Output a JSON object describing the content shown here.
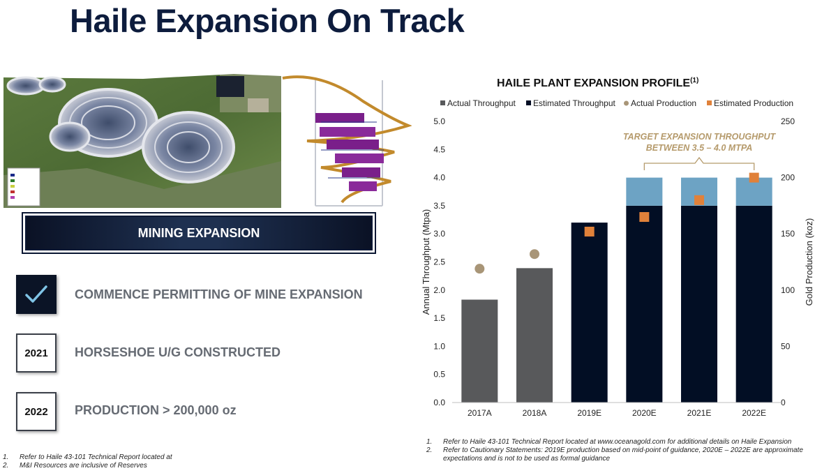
{
  "page": {
    "title": "Haile Expansion On Track"
  },
  "images": {
    "satellite": "haile-mine-satellite-image",
    "model": "horseshoe-underground-3d-model"
  },
  "banner": {
    "label": "MINING EXPANSION"
  },
  "milestones": [
    {
      "marker": "",
      "icon": "checkmark-icon",
      "text": "COMMENCE PERMITTING OF MINE EXPANSION"
    },
    {
      "marker": "2021",
      "text": "HORSESHOE U/G CONSTRUCTED"
    },
    {
      "marker": "2022",
      "text": "PRODUCTION > 200,000 oz"
    }
  ],
  "footnotes_left": [
    {
      "num": "1.",
      "text": "Refer to Haile 43-101 Technical Report located at"
    },
    {
      "num": "2.",
      "text": "M&I Resources are inclusive of Reserves"
    }
  ],
  "footnotes_right": [
    {
      "num": "1.",
      "text": "Refer to Haile 43-101 Technical Report located at www.oceanagold.com for additional details on Haile Expansion"
    },
    {
      "num": "2.",
      "text": "Refer to Cautionary Statements: 2019E production based on mid-point of guidance, 2020E – 2022E are approximate expectations and is not to be used as formal guidance"
    }
  ],
  "colors": {
    "title": "#0d1c3d",
    "actual_throughput": "#58595b",
    "estimated_throughput": "#020e24",
    "expansion_band": "#6da3c4",
    "actual_production": "#a89577",
    "estimated_production": "#e0813a",
    "annotation": "#b59a6b"
  },
  "chart_data": {
    "type": "bar",
    "title": "HAILE PLANT EXPANSION PROFILE",
    "title_superscript": "(1)",
    "categories": [
      "2017A",
      "2018A",
      "2019E",
      "2020E",
      "2021E",
      "2022E"
    ],
    "series": [
      {
        "name": "Actual Throughput",
        "type": "bar",
        "axis": "left",
        "values": [
          1.83,
          2.39,
          null,
          null,
          null,
          null
        ]
      },
      {
        "name": "Estimated Throughput",
        "type": "bar",
        "axis": "left",
        "values": [
          null,
          null,
          3.2,
          3.5,
          3.5,
          3.5
        ]
      },
      {
        "name": "",
        "type": "bar-range",
        "axis": "left",
        "values": [
          null,
          null,
          null,
          [
            3.5,
            4.0
          ],
          [
            3.5,
            4.0
          ],
          [
            3.5,
            4.0
          ]
        ]
      },
      {
        "name": "Actual Production",
        "type": "marker-circle",
        "axis": "right",
        "values": [
          119,
          132,
          null,
          null,
          null,
          null
        ]
      },
      {
        "name": "Estimated Production",
        "type": "marker-square",
        "axis": "right",
        "values": [
          null,
          null,
          152,
          165,
          180,
          200
        ]
      }
    ],
    "ylabel": "Annual Throughput (Mtpa)",
    "ylim": [
      0,
      5
    ],
    "yticks": [
      "0.0",
      "0.5",
      "1.0",
      "1.5",
      "2.0",
      "2.5",
      "3.0",
      "3.5",
      "4.0",
      "4.5",
      "5.0"
    ],
    "y2label": "Gold Production (koz)",
    "y2lim": [
      0,
      250
    ],
    "y2ticks": [
      "0",
      "50",
      "100",
      "150",
      "200",
      "250"
    ],
    "legend_position": "top",
    "grid": false,
    "annotation": {
      "lines": [
        "TARGET EXPANSION THROUGHPUT",
        "BETWEEN 3.5 – 4.0 MTPA"
      ],
      "spans": [
        "2020E",
        "2022E"
      ]
    }
  }
}
